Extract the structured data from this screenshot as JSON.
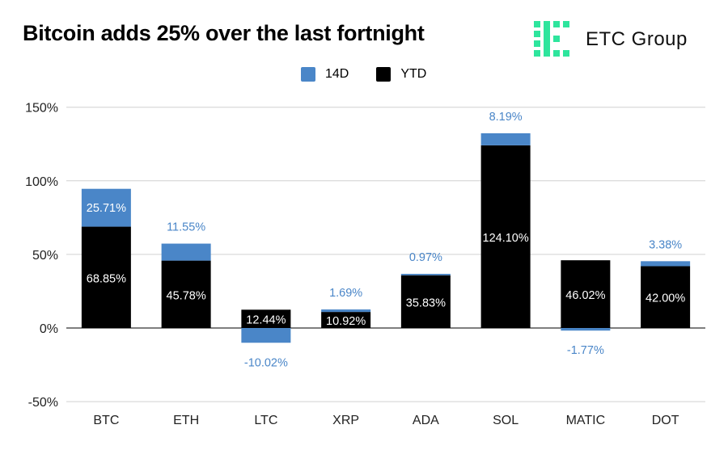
{
  "title": "Bitcoin adds 25% over the last fortnight",
  "brand": {
    "name": "ETC Group",
    "logo_icon": "etc-group-logo-icon",
    "logo_color": "#2ee59d"
  },
  "legend": [
    {
      "label": "14D",
      "color": "#4a86c8"
    },
    {
      "label": "YTD",
      "color": "#000000"
    }
  ],
  "chart_data": {
    "type": "bar",
    "stacked": true,
    "categories": [
      "BTC",
      "ETH",
      "LTC",
      "XRP",
      "ADA",
      "SOL",
      "MATIC",
      "DOT"
    ],
    "series": [
      {
        "name": "YTD",
        "color": "#000000",
        "values": [
          68.85,
          45.78,
          12.44,
          10.92,
          35.83,
          124.1,
          46.02,
          42.0
        ],
        "labels": [
          "68.85%",
          "45.78%",
          "12.44%",
          "10.92%",
          "35.83%",
          "124.10%",
          "46.02%",
          "42.00%"
        ]
      },
      {
        "name": "14D",
        "color": "#4a86c8",
        "values": [
          25.71,
          11.55,
          -10.02,
          1.69,
          0.97,
          8.19,
          -1.77,
          3.38
        ],
        "labels": [
          "25.71%",
          "11.55%",
          "-10.02%",
          "1.69%",
          "0.97%",
          "8.19%",
          "-1.77%",
          "3.38%"
        ]
      }
    ],
    "ylim": [
      -50,
      150
    ],
    "yticks": [
      -50,
      0,
      50,
      100,
      150
    ],
    "ytick_labels": [
      "-50%",
      "0%",
      "50%",
      "100%",
      "150%"
    ],
    "grid": true,
    "legend_position": "top-center",
    "xlabel": "",
    "ylabel": ""
  }
}
